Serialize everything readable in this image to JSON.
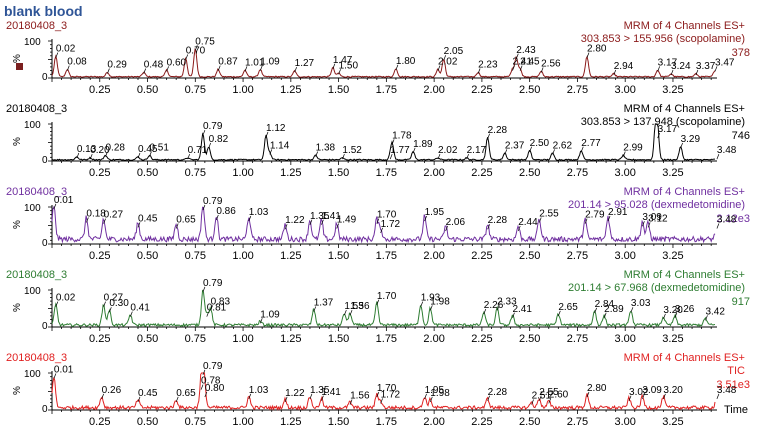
{
  "sample_title": "blank blood",
  "x_axis_label": "Time",
  "marker_color": "#7b1f1f",
  "chart_data": [
    {
      "type": "line",
      "sample": "20180408_3",
      "channel": "MRM of 4 Channels ES+",
      "transition": "303.853 > 155.956 (scopolamine)",
      "max_intensity": "378",
      "color": "#8b1a1a",
      "ylabel": "%",
      "ytick_labels": [
        "0",
        "100"
      ],
      "ylim": [
        0,
        100
      ],
      "xlim": [
        0,
        3.47
      ],
      "xticks": [
        0.25,
        0.5,
        0.75,
        1.0,
        1.25,
        1.5,
        1.75,
        2.0,
        2.25,
        2.5,
        2.75,
        3.0,
        3.25
      ],
      "xtick_labels": [
        "0.25",
        "0.50",
        "0.75",
        "1.00",
        "1.25",
        "1.50",
        "1.75",
        "2.00",
        "2.25",
        "2.50",
        "2.75",
        "3.00",
        "3.25"
      ],
      "peaks": [
        {
          "x": 0.02,
          "y": 55,
          "label": "0.02"
        },
        {
          "x": 0.08,
          "y": 20,
          "label": "0.08"
        },
        {
          "x": 0.29,
          "y": 12,
          "label": "0.29"
        },
        {
          "x": 0.48,
          "y": 12,
          "label": "0.48"
        },
        {
          "x": 0.6,
          "y": 18,
          "label": "0.60"
        },
        {
          "x": 0.7,
          "y": 50,
          "label": "0.70"
        },
        {
          "x": 0.75,
          "y": 75,
          "label": "0.75"
        },
        {
          "x": 0.87,
          "y": 20,
          "label": "0.87"
        },
        {
          "x": 1.01,
          "y": 18,
          "label": "1.01"
        },
        {
          "x": 1.09,
          "y": 20,
          "label": "1.09"
        },
        {
          "x": 1.27,
          "y": 16,
          "label": "1.27"
        },
        {
          "x": 1.47,
          "y": 25,
          "label": "1.47"
        },
        {
          "x": 1.5,
          "y": 10,
          "label": "1.50"
        },
        {
          "x": 1.8,
          "y": 22,
          "label": "1.80"
        },
        {
          "x": 2.02,
          "y": 20,
          "label": "2.02"
        },
        {
          "x": 2.05,
          "y": 48,
          "label": "2.05"
        },
        {
          "x": 2.23,
          "y": 12,
          "label": "2.23"
        },
        {
          "x": 2.41,
          "y": 20,
          "label": "2.41"
        },
        {
          "x": 2.43,
          "y": 52,
          "label": "2.43"
        },
        {
          "x": 2.45,
          "y": 20,
          "label": "2.45"
        },
        {
          "x": 2.56,
          "y": 15,
          "label": "2.56"
        },
        {
          "x": 2.8,
          "y": 55,
          "label": "2.80"
        },
        {
          "x": 2.94,
          "y": 8,
          "label": "2.94"
        },
        {
          "x": 3.17,
          "y": 18,
          "label": "3.17"
        },
        {
          "x": 3.24,
          "y": 8,
          "label": "3.24"
        },
        {
          "x": 3.37,
          "y": 8,
          "label": "3.37"
        },
        {
          "x": 3.47,
          "y": 18,
          "label": "3.47"
        }
      ]
    },
    {
      "type": "line",
      "sample": "20180408_3",
      "channel": "MRM of 4 Channels ES+",
      "transition": "303.853 > 137.948 (scopolamine)",
      "max_intensity": "746",
      "color": "#000000",
      "ylabel": "%",
      "ytick_labels": [
        "0",
        "100"
      ],
      "ylim": [
        0,
        100
      ],
      "xlim": [
        0,
        3.47
      ],
      "xticks": [
        0.25,
        0.5,
        0.75,
        1.0,
        1.25,
        1.5,
        1.75,
        2.0,
        2.25,
        2.5,
        2.75,
        3.0,
        3.25
      ],
      "xtick_labels": [
        "0.25",
        "0.50",
        "0.75",
        "1.00",
        "1.25",
        "1.50",
        "1.75",
        "2.00",
        "2.25",
        "2.50",
        "2.75",
        "3.00",
        "3.25"
      ],
      "peaks": [
        {
          "x": 0.13,
          "y": 8,
          "label": "0.13"
        },
        {
          "x": 0.2,
          "y": 5,
          "label": "0.20"
        },
        {
          "x": 0.28,
          "y": 12,
          "label": "0.28"
        },
        {
          "x": 0.45,
          "y": 8,
          "label": "0.45"
        },
        {
          "x": 0.51,
          "y": 12,
          "label": "0.51"
        },
        {
          "x": 0.71,
          "y": 5,
          "label": "0.71"
        },
        {
          "x": 0.79,
          "y": 70,
          "label": "0.79"
        },
        {
          "x": 0.82,
          "y": 35,
          "label": "0.82"
        },
        {
          "x": 1.12,
          "y": 65,
          "label": "1.12"
        },
        {
          "x": 1.14,
          "y": 18,
          "label": "1.14"
        },
        {
          "x": 1.38,
          "y": 12,
          "label": "1.38"
        },
        {
          "x": 1.52,
          "y": 5,
          "label": "1.52"
        },
        {
          "x": 1.77,
          "y": 5,
          "label": "1.77"
        },
        {
          "x": 1.78,
          "y": 45,
          "label": "1.78"
        },
        {
          "x": 1.89,
          "y": 22,
          "label": "1.89"
        },
        {
          "x": 2.02,
          "y": 5,
          "label": "2.02"
        },
        {
          "x": 2.17,
          "y": 5,
          "label": "2.17"
        },
        {
          "x": 2.28,
          "y": 60,
          "label": "2.28"
        },
        {
          "x": 2.37,
          "y": 18,
          "label": "2.37"
        },
        {
          "x": 2.5,
          "y": 25,
          "label": "2.50"
        },
        {
          "x": 2.62,
          "y": 18,
          "label": "2.62"
        },
        {
          "x": 2.77,
          "y": 25,
          "label": "2.77"
        },
        {
          "x": 2.99,
          "y": 12,
          "label": "2.99"
        },
        {
          "x": 3.16,
          "y": 100,
          "label": ""
        },
        {
          "x": 3.17,
          "y": 62,
          "label": "3.17"
        },
        {
          "x": 3.29,
          "y": 35,
          "label": "3.29"
        },
        {
          "x": 3.48,
          "y": 5,
          "label": "3.48"
        }
      ]
    },
    {
      "type": "line",
      "sample": "20180408_3",
      "channel": "MRM of 4 Channels ES+",
      "transition": "201.14 > 95.028 (dexmedetomidine)",
      "max_intensity": "2.12e3",
      "color": "#7030a0",
      "ylabel": "%",
      "ytick_labels": [
        "0",
        "100"
      ],
      "ylim": [
        0,
        100
      ],
      "xlim": [
        0,
        3.47
      ],
      "xticks": [
        0.25,
        0.5,
        0.75,
        1.0,
        1.25,
        1.5,
        1.75,
        2.0,
        2.25,
        2.5,
        2.75,
        3.0,
        3.25
      ],
      "xtick_labels": [
        "0.25",
        "0.50",
        "0.75",
        "1.00",
        "1.25",
        "1.50",
        "1.75",
        "2.00",
        "2.25",
        "2.50",
        "2.75",
        "3.00",
        "3.25"
      ],
      "peaks": [
        {
          "x": 0.01,
          "y": 95,
          "label": "0.01"
        },
        {
          "x": 0.18,
          "y": 58,
          "label": "0.18"
        },
        {
          "x": 0.27,
          "y": 55,
          "label": "0.27"
        },
        {
          "x": 0.45,
          "y": 45,
          "label": "0.45"
        },
        {
          "x": 0.65,
          "y": 42,
          "label": "0.65"
        },
        {
          "x": 0.79,
          "y": 92,
          "label": "0.79"
        },
        {
          "x": 0.86,
          "y": 65,
          "label": "0.86"
        },
        {
          "x": 1.03,
          "y": 62,
          "label": "1.03"
        },
        {
          "x": 1.22,
          "y": 40,
          "label": "1.22"
        },
        {
          "x": 1.35,
          "y": 52,
          "label": "1.35"
        },
        {
          "x": 1.41,
          "y": 52,
          "label": "1.41"
        },
        {
          "x": 1.49,
          "y": 42,
          "label": "1.49"
        },
        {
          "x": 1.7,
          "y": 55,
          "label": "1.70"
        },
        {
          "x": 1.72,
          "y": 30,
          "label": "1.72"
        },
        {
          "x": 1.95,
          "y": 62,
          "label": "1.95"
        },
        {
          "x": 2.06,
          "y": 35,
          "label": "2.06"
        },
        {
          "x": 2.28,
          "y": 40,
          "label": "2.28"
        },
        {
          "x": 2.44,
          "y": 35,
          "label": "2.44"
        },
        {
          "x": 2.55,
          "y": 58,
          "label": "2.55"
        },
        {
          "x": 2.79,
          "y": 55,
          "label": "2.79"
        },
        {
          "x": 2.91,
          "y": 62,
          "label": "2.91"
        },
        {
          "x": 3.09,
          "y": 48,
          "label": "3.09"
        },
        {
          "x": 3.12,
          "y": 45,
          "label": "3.12"
        },
        {
          "x": 3.48,
          "y": 42,
          "label": "3.48"
        }
      ]
    },
    {
      "type": "line",
      "sample": "20180408_3",
      "channel": "MRM of 4 Channels ES+",
      "transition": "201.14 > 67.968 (dexmedetomidine)",
      "max_intensity": "917",
      "color": "#2e7d32",
      "ylabel": "%",
      "ytick_labels": [
        "0",
        "100"
      ],
      "ylim": [
        0,
        100
      ],
      "xlim": [
        0,
        3.47
      ],
      "xticks": [
        0.25,
        0.5,
        0.75,
        1.0,
        1.25,
        1.5,
        1.75,
        2.0,
        2.25,
        2.5,
        2.75,
        3.0,
        3.25
      ],
      "xtick_labels": [
        "0.25",
        "0.50",
        "0.75",
        "1.00",
        "1.25",
        "1.50",
        "1.75",
        "2.00",
        "2.25",
        "2.50",
        "2.75",
        "3.00",
        "3.25"
      ],
      "peaks": [
        {
          "x": 0.02,
          "y": 55,
          "label": "0.02"
        },
        {
          "x": 0.27,
          "y": 55,
          "label": "0.27"
        },
        {
          "x": 0.3,
          "y": 40,
          "label": "0.30"
        },
        {
          "x": 0.41,
          "y": 28,
          "label": "0.41"
        },
        {
          "x": 0.81,
          "y": 28,
          "label": "0.81"
        },
        {
          "x": 0.79,
          "y": 95,
          "label": "0.79"
        },
        {
          "x": 0.83,
          "y": 45,
          "label": "0.83"
        },
        {
          "x": 1.09,
          "y": 10,
          "label": "1.09"
        },
        {
          "x": 1.37,
          "y": 42,
          "label": "1.37"
        },
        {
          "x": 1.53,
          "y": 32,
          "label": "1.53"
        },
        {
          "x": 1.56,
          "y": 32,
          "label": "1.56"
        },
        {
          "x": 1.7,
          "y": 60,
          "label": "1.70"
        },
        {
          "x": 1.93,
          "y": 55,
          "label": "1.93"
        },
        {
          "x": 1.98,
          "y": 45,
          "label": "1.98"
        },
        {
          "x": 2.26,
          "y": 35,
          "label": "2.26"
        },
        {
          "x": 2.33,
          "y": 45,
          "label": "2.33"
        },
        {
          "x": 2.41,
          "y": 25,
          "label": "2.41"
        },
        {
          "x": 2.65,
          "y": 30,
          "label": "2.65"
        },
        {
          "x": 2.84,
          "y": 38,
          "label": "2.84"
        },
        {
          "x": 2.89,
          "y": 25,
          "label": "2.89"
        },
        {
          "x": 3.03,
          "y": 40,
          "label": "3.03"
        },
        {
          "x": 3.2,
          "y": 22,
          "label": "3.20"
        },
        {
          "x": 3.26,
          "y": 25,
          "label": "3.26"
        },
        {
          "x": 3.42,
          "y": 18,
          "label": "3.42"
        }
      ]
    },
    {
      "type": "line",
      "sample": "20180408_3",
      "channel": "MRM of 4 Channels ES+",
      "transition": "TIC",
      "max_intensity": "3.51e3",
      "color": "#e02020",
      "ylabel": "%",
      "ytick_labels": [
        "0",
        "100"
      ],
      "ylim": [
        0,
        100
      ],
      "xlim": [
        0,
        3.47
      ],
      "xticks": [
        0.25,
        0.5,
        0.75,
        1.0,
        1.25,
        1.5,
        1.75,
        2.0,
        2.25,
        2.5,
        2.75,
        3.0,
        3.25
      ],
      "xtick_labels": [
        "0.25",
        "0.50",
        "0.75",
        "1.00",
        "1.25",
        "1.50",
        "1.75",
        "2.00",
        "2.25",
        "2.50",
        "2.75",
        "3.00",
        "3.25"
      ],
      "peaks": [
        {
          "x": 0.01,
          "y": 85,
          "label": "0.01"
        },
        {
          "x": 0.26,
          "y": 30,
          "label": "0.26"
        },
        {
          "x": 0.45,
          "y": 22,
          "label": "0.45"
        },
        {
          "x": 0.65,
          "y": 22,
          "label": "0.65"
        },
        {
          "x": 0.78,
          "y": 55,
          "label": "0.78"
        },
        {
          "x": 0.79,
          "y": 95,
          "label": "0.79"
        },
        {
          "x": 0.8,
          "y": 35,
          "label": "0.80"
        },
        {
          "x": 1.03,
          "y": 30,
          "label": "1.03"
        },
        {
          "x": 1.22,
          "y": 22,
          "label": "1.22"
        },
        {
          "x": 1.35,
          "y": 30,
          "label": "1.35"
        },
        {
          "x": 1.41,
          "y": 25,
          "label": "1.41"
        },
        {
          "x": 1.56,
          "y": 15,
          "label": "1.56"
        },
        {
          "x": 1.7,
          "y": 35,
          "label": "1.70"
        },
        {
          "x": 1.72,
          "y": 18,
          "label": "1.72"
        },
        {
          "x": 1.95,
          "y": 30,
          "label": "1.95"
        },
        {
          "x": 1.98,
          "y": 22,
          "label": "1.98"
        },
        {
          "x": 2.28,
          "y": 25,
          "label": "2.28"
        },
        {
          "x": 2.51,
          "y": 15,
          "label": "2.51"
        },
        {
          "x": 2.55,
          "y": 25,
          "label": "2.55"
        },
        {
          "x": 2.6,
          "y": 18,
          "label": "2.60"
        },
        {
          "x": 2.8,
          "y": 35,
          "label": "2.80"
        },
        {
          "x": 3.02,
          "y": 25,
          "label": "3.02"
        },
        {
          "x": 3.09,
          "y": 30,
          "label": "3.09"
        },
        {
          "x": 3.2,
          "y": 30,
          "label": "3.20"
        },
        {
          "x": 3.48,
          "y": 30,
          "label": "3.48"
        }
      ]
    }
  ]
}
